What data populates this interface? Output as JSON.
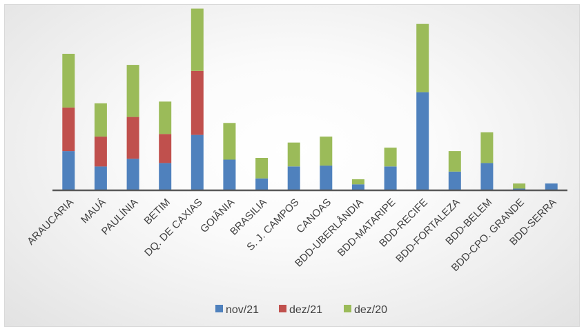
{
  "chart_data": {
    "type": "bar",
    "stacked": true,
    "title": "",
    "xlabel": "",
    "ylabel": "",
    "categories": [
      "ARAUCARIA",
      "MAUÁ",
      "PAULÍNIA",
      "BETIM",
      "DQ. DE CAXIAS",
      "GOIÂNIA",
      "BRASILIA",
      "S. J. CAMPOS",
      "CANOAS",
      "BDD-UBERLÂNDIA",
      "BDD-MATARIPE",
      "BDD-RECIFE",
      "BDD-FORTALEZA",
      "BDD-BELEM",
      "BDD-CPO. GRANDE",
      "BDD-SERRA"
    ],
    "series": [
      {
        "name": "nov/21",
        "color": "#4f81bd",
        "values": [
          46,
          28,
          37,
          32,
          65,
          36,
          14,
          28,
          29,
          7,
          28,
          115,
          22,
          32,
          2,
          8
        ]
      },
      {
        "name": "dez/21",
        "color": "#c0504d",
        "values": [
          51,
          35,
          49,
          34,
          75,
          0,
          0,
          0,
          0,
          0,
          0,
          0,
          0,
          0,
          0,
          0
        ]
      },
      {
        "name": "dez/20",
        "color": "#9bbb59",
        "values": [
          63,
          39,
          61,
          38,
          73,
          43,
          24,
          28,
          34,
          6,
          22,
          80,
          24,
          36,
          6,
          0
        ]
      }
    ],
    "ylim": [
      0,
      215
    ],
    "grid": false,
    "legend": "bottom"
  }
}
